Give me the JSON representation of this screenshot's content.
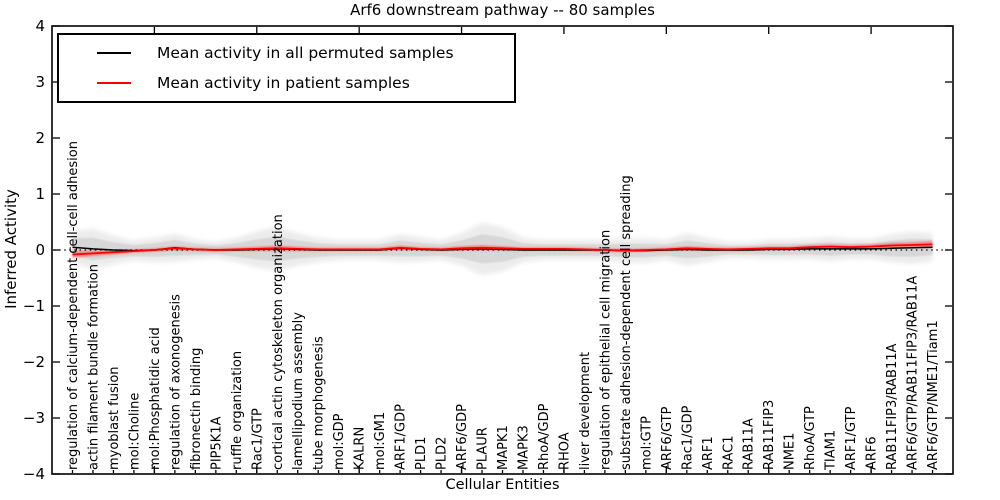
{
  "chart_data": {
    "type": "line",
    "title": "Arf6 downstream pathway -- 80 samples",
    "xlabel": "Cellular Entities",
    "ylabel": "Inferred Activity",
    "ylim": [
      -4,
      4
    ],
    "yticks": [
      4,
      3,
      2,
      1,
      0,
      -1,
      -2,
      -3,
      -4
    ],
    "grid": false,
    "legend_position": "upper left",
    "zero_line_style": "dotted",
    "x_major_tick_every": 5,
    "categories": [
      "regulation of calcium-dependent cell-cell adhesion",
      "actin filament bundle formation",
      "myoblast fusion",
      "mol:Choline",
      "mol:Phosphatidic acid",
      "regulation of axonogenesis",
      "fibronectin binding",
      "PIP5K1A",
      "ruffle organization",
      "Rac1/GTP",
      "cortical actin cytoskeleton organization",
      "lamellipodium assembly",
      "tube morphogenesis",
      "mol:GDP",
      "KALRN",
      "mol:GM1",
      "ARF1/GDP",
      "PLD1",
      "PLD2",
      "ARF6/GDP",
      "PLAUR",
      "MAPK1",
      "MAPK3",
      "RhoA/GDP",
      "RHOA",
      "liver development",
      "regulation of epithelial cell migration",
      "substrate adhesion-dependent cell spreading",
      "mol:GTP",
      "ARF6/GTP",
      "Rac1/GDP",
      "ARF1",
      "RAC1",
      "RAB11A",
      "RAB11FIP3",
      "NME1",
      "RhoA/GTP",
      "TIAM1",
      "ARF1/GTP",
      "ARF6",
      "RAB11FIP3/RAB11A",
      "ARF6/GTP/RAB11FIP3/RAB11A",
      "ARF6/GTP/NME1/Tiam1"
    ],
    "series": [
      {
        "name": "Mean activity in all permuted samples",
        "color": "#000000",
        "band_color": "#d6d6d6",
        "values": [
          0.05,
          0.02,
          0.0,
          -0.01,
          0.0,
          0.04,
          0.01,
          0.0,
          0.0,
          0.01,
          0.02,
          0.01,
          0.0,
          0.0,
          0.0,
          0.0,
          0.03,
          0.01,
          0.0,
          0.01,
          0.02,
          0.01,
          0.0,
          0.0,
          0.0,
          0.0,
          0.0,
          -0.01,
          -0.01,
          0.0,
          0.01,
          0.0,
          0.0,
          0.0,
          0.01,
          0.01,
          0.02,
          0.02,
          0.02,
          0.02,
          0.03,
          0.04,
          0.05
        ],
        "band_halfwidth": [
          0.16,
          0.2,
          0.14,
          0.1,
          0.12,
          0.14,
          0.1,
          0.08,
          0.12,
          0.18,
          0.22,
          0.16,
          0.12,
          0.1,
          0.1,
          0.1,
          0.14,
          0.12,
          0.1,
          0.16,
          0.26,
          0.22,
          0.12,
          0.1,
          0.1,
          0.1,
          0.1,
          0.12,
          0.12,
          0.1,
          0.16,
          0.12,
          0.08,
          0.08,
          0.1,
          0.1,
          0.1,
          0.12,
          0.1,
          0.1,
          0.14,
          0.16,
          0.14
        ]
      },
      {
        "name": "Mean activity in patient samples",
        "color": "#ff0000",
        "band_color": "#ff4d4d",
        "values": [
          -0.08,
          -0.06,
          -0.04,
          -0.02,
          0.0,
          0.03,
          0.01,
          0.0,
          0.01,
          0.02,
          0.03,
          0.02,
          0.01,
          0.01,
          0.01,
          0.01,
          0.04,
          0.02,
          0.01,
          0.03,
          0.04,
          0.03,
          0.02,
          0.02,
          0.02,
          0.01,
          0.0,
          -0.01,
          0.0,
          0.01,
          0.03,
          0.02,
          0.01,
          0.02,
          0.03,
          0.03,
          0.05,
          0.06,
          0.05,
          0.06,
          0.08,
          0.09,
          0.1
        ],
        "band_halfwidth": [
          0.06,
          0.05,
          0.04,
          0.03,
          0.03,
          0.04,
          0.03,
          0.03,
          0.03,
          0.04,
          0.05,
          0.04,
          0.03,
          0.03,
          0.03,
          0.03,
          0.04,
          0.03,
          0.03,
          0.04,
          0.05,
          0.04,
          0.03,
          0.03,
          0.03,
          0.03,
          0.03,
          0.03,
          0.03,
          0.03,
          0.04,
          0.03,
          0.03,
          0.03,
          0.03,
          0.03,
          0.04,
          0.04,
          0.04,
          0.04,
          0.05,
          0.05,
          0.06
        ]
      }
    ]
  }
}
